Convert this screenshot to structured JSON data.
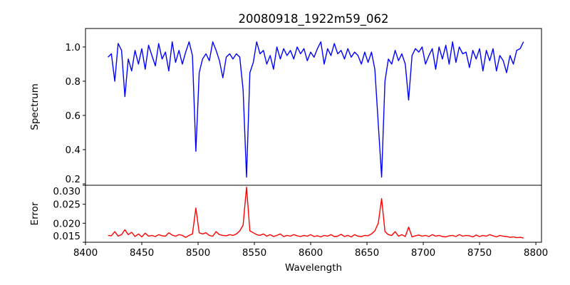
{
  "chart_data": [
    {
      "type": "line",
      "title": "20080918_1922m59_062",
      "xlabel": "",
      "ylabel": "Spectrum",
      "xlim": [
        8400,
        8805
      ],
      "ylim": [
        0.192,
        1.108
      ],
      "yticks": [
        0.2,
        0.4,
        0.6,
        0.8,
        1.0
      ],
      "ytick_labels": [
        "0.2",
        "0.4",
        "0.6",
        "0.8",
        "1.0"
      ],
      "color": "#0000ff",
      "x_start": 8420,
      "x_step": 3,
      "y": [
        0.94,
        0.96,
        0.8,
        1.02,
        0.98,
        0.71,
        0.93,
        0.86,
        0.98,
        0.9,
        0.99,
        0.87,
        1.01,
        0.95,
        0.89,
        1.02,
        0.93,
        0.97,
        0.86,
        1.03,
        0.91,
        0.98,
        0.9,
        0.97,
        1.03,
        0.95,
        0.39,
        0.85,
        0.93,
        0.96,
        0.92,
        1.03,
        0.98,
        0.92,
        0.82,
        0.94,
        0.96,
        0.93,
        0.96,
        0.94,
        0.75,
        0.24,
        0.85,
        0.91,
        1.03,
        0.96,
        0.98,
        0.9,
        0.95,
        0.87,
        1.0,
        0.93,
        0.99,
        0.95,
        0.98,
        0.93,
        1.0,
        0.96,
        0.99,
        0.92,
        0.97,
        0.94,
        0.99,
        1.03,
        0.9,
        0.99,
        0.95,
        1.02,
        0.96,
        0.98,
        0.93,
        0.99,
        0.94,
        0.97,
        0.95,
        0.9,
        0.97,
        0.91,
        0.97,
        0.87,
        0.55,
        0.24,
        0.8,
        0.93,
        0.9,
        0.98,
        0.92,
        0.96,
        0.9,
        0.69,
        0.95,
        0.99,
        0.97,
        1.0,
        0.9,
        0.95,
        0.99,
        0.87,
        1.0,
        0.93,
        1.01,
        0.9,
        1.03,
        0.91,
        1.0,
        0.96,
        0.97,
        0.88,
        0.98,
        0.93,
        0.99,
        0.86,
        0.98,
        0.92,
        0.99,
        0.86,
        0.95,
        0.92,
        0.85,
        0.95,
        0.9,
        0.98,
        0.99,
        1.03
      ]
    },
    {
      "type": "line",
      "xlabel": "Wavelength",
      "ylabel": "Error",
      "xlim": [
        8400,
        8805
      ],
      "ylim": [
        0.015,
        0.03
      ],
      "xticks": [
        8400,
        8450,
        8500,
        8550,
        8600,
        8650,
        8700,
        8750,
        8800
      ],
      "xtick_labels": [
        "8400",
        "8450",
        "8500",
        "8550",
        "8600",
        "8650",
        "8700",
        "8750",
        "8800"
      ],
      "yticks": [
        0.015,
        0.02,
        0.025,
        0.03
      ],
      "ytick_labels": [
        "0.015",
        "0.020",
        "0.025",
        "0.030"
      ],
      "color": "#ff0000",
      "x_start": 8420,
      "x_step": 3,
      "y": [
        0.0168,
        0.0167,
        0.0178,
        0.0166,
        0.017,
        0.0183,
        0.017,
        0.0176,
        0.0165,
        0.0172,
        0.0164,
        0.0174,
        0.0166,
        0.0168,
        0.0165,
        0.017,
        0.0167,
        0.0166,
        0.0175,
        0.0169,
        0.0166,
        0.017,
        0.0168,
        0.0163,
        0.0168,
        0.0172,
        0.024,
        0.0175,
        0.0172,
        0.0175,
        0.0168,
        0.0166,
        0.0178,
        0.017,
        0.0168,
        0.0167,
        0.017,
        0.0168,
        0.0172,
        0.018,
        0.0195,
        0.0295,
        0.018,
        0.0175,
        0.017,
        0.0168,
        0.0172,
        0.0166,
        0.017,
        0.0165,
        0.0168,
        0.0172,
        0.0165,
        0.0168,
        0.0166,
        0.017,
        0.0167,
        0.0165,
        0.0168,
        0.0166,
        0.017,
        0.0165,
        0.0167,
        0.0164,
        0.0168,
        0.0166,
        0.017,
        0.0165,
        0.0166,
        0.0171,
        0.0165,
        0.0168,
        0.0164,
        0.017,
        0.0166,
        0.0165,
        0.0168,
        0.0167,
        0.0172,
        0.018,
        0.02,
        0.0265,
        0.0178,
        0.017,
        0.0168,
        0.0178,
        0.0166,
        0.017,
        0.0165,
        0.019,
        0.0164,
        0.0167,
        0.0169,
        0.0166,
        0.0168,
        0.0165,
        0.017,
        0.0166,
        0.0168,
        0.0165,
        0.0164,
        0.0167,
        0.0168,
        0.0165,
        0.017,
        0.0166,
        0.0168,
        0.0167,
        0.0164,
        0.0169,
        0.0165,
        0.0168,
        0.0166,
        0.017,
        0.0167,
        0.0164,
        0.0168,
        0.0166,
        0.0165,
        0.0163,
        0.0164,
        0.0162,
        0.0163,
        0.0161
      ]
    }
  ]
}
